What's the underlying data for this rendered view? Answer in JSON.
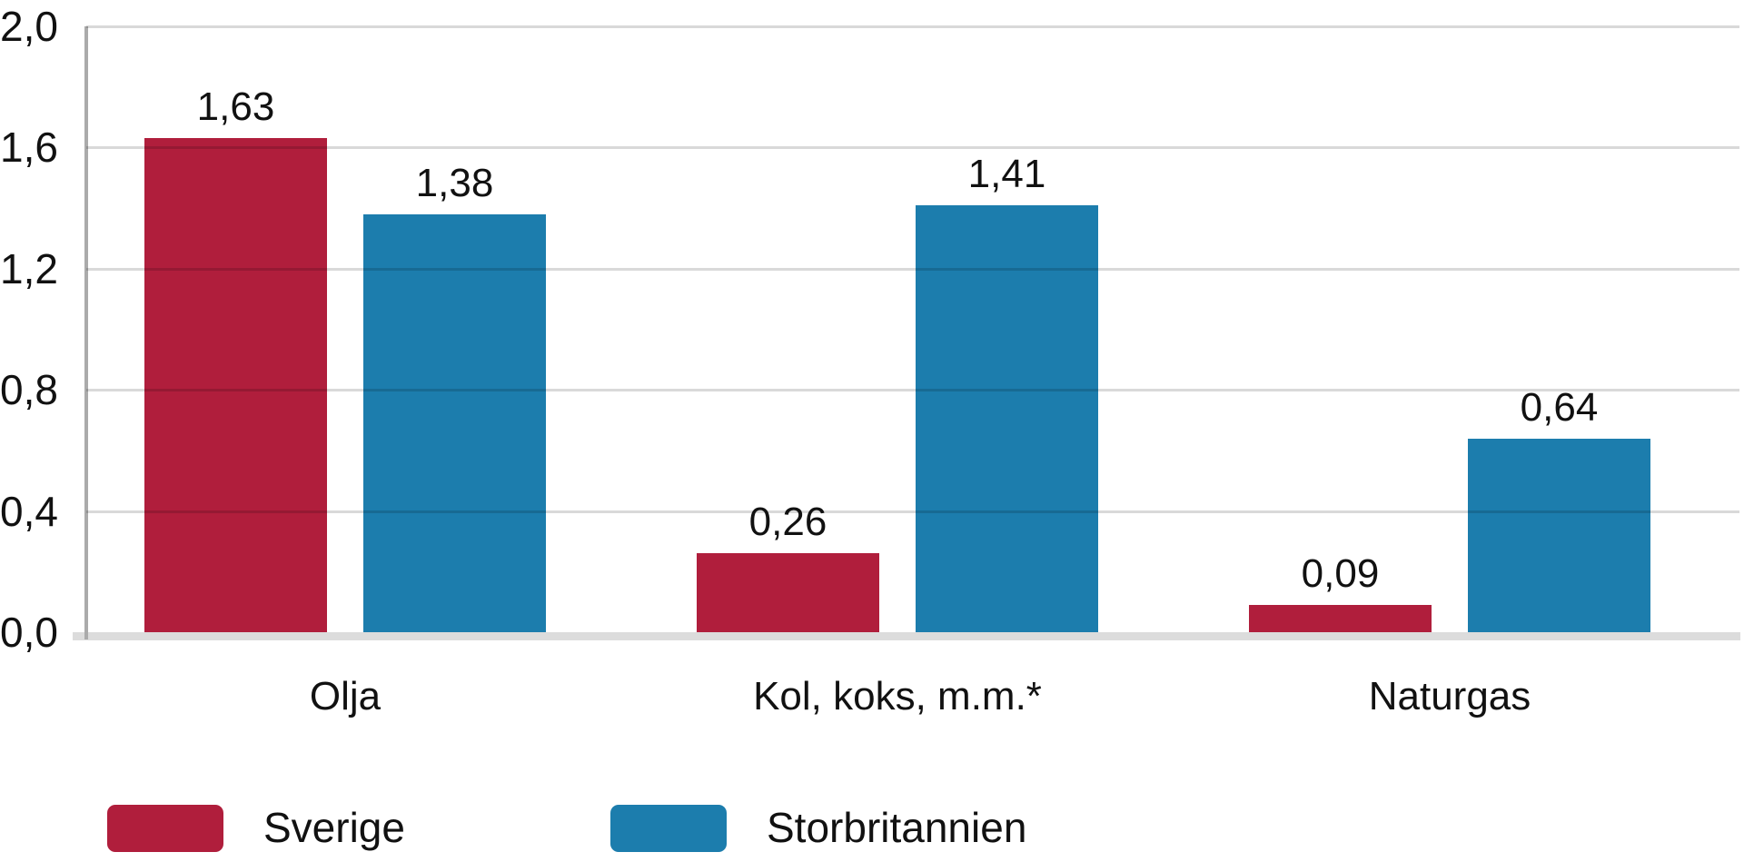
{
  "chart_data": {
    "type": "bar",
    "title": "",
    "categories": [
      "Olja",
      "Kol, koks, m.m.*",
      "Naturgas"
    ],
    "series": [
      {
        "name": "Sverige",
        "color": "#B01E3C",
        "values": [
          1.63,
          0.26,
          0.09
        ],
        "value_labels": [
          "1,63",
          "0,26",
          "0,09"
        ]
      },
      {
        "name": "Storbritannien",
        "color": "#1C7DAD",
        "values": [
          1.38,
          1.41,
          0.64
        ],
        "value_labels": [
          "1,38",
          "1,41",
          "0,64"
        ]
      }
    ],
    "y_axis": {
      "min": 0,
      "max": 2.0,
      "tick_step": 0.4,
      "tick_labels": [
        "0,0",
        "0,4",
        "0,8",
        "1,2",
        "1,6",
        "2,0"
      ]
    },
    "grid": true,
    "legend_position": "bottom-left",
    "colors": {
      "gridline": "rgba(0,0,0,0.15)",
      "axis_line": "#ABABAB",
      "baseline": "#DCDCDC",
      "text": "#111111",
      "background": "#FFFFFF"
    }
  }
}
